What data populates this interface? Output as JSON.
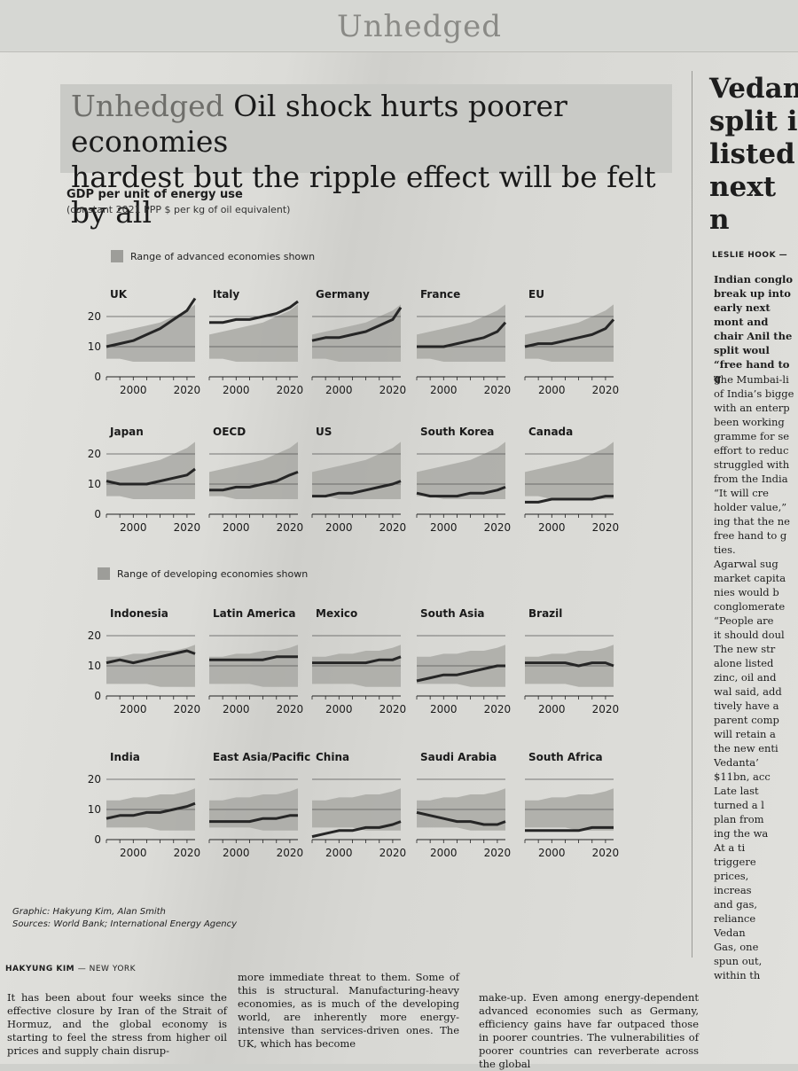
{
  "headline": {
    "kicker": "Unhedged",
    "line1_rest": "Oil shock hurts poorer economies",
    "line2": "hardest but the ripple effect will be felt by all"
  },
  "chart_data": {
    "type": "line",
    "title": "GDP per unit of energy use",
    "subtitle": "(constant 2021 PPP $ per kg of oil equivalent)",
    "legend_advanced": "Range of advanced economies shown",
    "legend_developing": "Range of developing economies shown",
    "x_ticks": [
      "2000",
      "2020"
    ],
    "y_ticks": [
      "0",
      "10",
      "20"
    ],
    "ylim": [
      0,
      25
    ],
    "xlim": [
      1990,
      2023
    ],
    "x": [
      1990,
      1995,
      2000,
      2005,
      2010,
      2015,
      2020,
      2023
    ],
    "band_advanced": {
      "low": [
        6,
        6,
        5,
        5,
        5,
        5,
        5,
        5
      ],
      "high": [
        14,
        15,
        16,
        17,
        18,
        20,
        22,
        24
      ]
    },
    "band_developing": {
      "low": [
        4,
        4,
        4,
        4,
        3,
        3,
        3,
        3
      ],
      "high": [
        13,
        13,
        14,
        14,
        15,
        15,
        16,
        17
      ]
    },
    "series": [
      {
        "name": "UK",
        "group": "advanced",
        "values": [
          10,
          11,
          12,
          14,
          16,
          19,
          22,
          26
        ]
      },
      {
        "name": "Italy",
        "group": "advanced",
        "values": [
          18,
          18,
          19,
          19,
          20,
          21,
          23,
          25
        ]
      },
      {
        "name": "Germany",
        "group": "advanced",
        "values": [
          12,
          13,
          13,
          14,
          15,
          17,
          19,
          23
        ]
      },
      {
        "name": "France",
        "group": "advanced",
        "values": [
          10,
          10,
          10,
          11,
          12,
          13,
          15,
          18
        ]
      },
      {
        "name": "EU",
        "group": "advanced",
        "values": [
          10,
          11,
          11,
          12,
          13,
          14,
          16,
          19
        ]
      },
      {
        "name": "Japan",
        "group": "advanced",
        "values": [
          11,
          10,
          10,
          10,
          11,
          12,
          13,
          15
        ]
      },
      {
        "name": "OECD",
        "group": "advanced",
        "values": [
          8,
          8,
          9,
          9,
          10,
          11,
          13,
          14
        ]
      },
      {
        "name": "US",
        "group": "advanced",
        "values": [
          6,
          6,
          7,
          7,
          8,
          9,
          10,
          11
        ]
      },
      {
        "name": "South Korea",
        "group": "advanced",
        "values": [
          7,
          6,
          6,
          6,
          7,
          7,
          8,
          9
        ]
      },
      {
        "name": "Canada",
        "group": "advanced",
        "values": [
          4,
          4,
          5,
          5,
          5,
          5,
          6,
          6
        ]
      },
      {
        "name": "Indonesia",
        "group": "developing",
        "values": [
          11,
          12,
          11,
          12,
          13,
          14,
          15,
          14
        ]
      },
      {
        "name": "Latin America",
        "group": "developing",
        "values": [
          12,
          12,
          12,
          12,
          12,
          13,
          13,
          13
        ]
      },
      {
        "name": "Mexico",
        "group": "developing",
        "values": [
          11,
          11,
          11,
          11,
          11,
          12,
          12,
          13
        ]
      },
      {
        "name": "South Asia",
        "group": "developing",
        "values": [
          5,
          6,
          7,
          7,
          8,
          9,
          10,
          10
        ]
      },
      {
        "name": "Brazil",
        "group": "developing",
        "values": [
          11,
          11,
          11,
          11,
          10,
          11,
          11,
          10
        ]
      },
      {
        "name": "India",
        "group": "developing",
        "values": [
          7,
          8,
          8,
          9,
          9,
          10,
          11,
          12
        ]
      },
      {
        "name": "East Asia/Pacific",
        "group": "developing",
        "values": [
          6,
          6,
          6,
          6,
          7,
          7,
          8,
          8
        ]
      },
      {
        "name": "China",
        "group": "developing",
        "values": [
          1,
          2,
          3,
          3,
          4,
          4,
          5,
          6
        ]
      },
      {
        "name": "Saudi Arabia",
        "group": "developing",
        "values": [
          9,
          8,
          7,
          6,
          6,
          5,
          5,
          6
        ]
      },
      {
        "name": "South Africa",
        "group": "developing",
        "values": [
          3,
          3,
          3,
          3,
          3,
          4,
          4,
          4
        ]
      }
    ]
  },
  "credits": {
    "graphic": "Graphic: Hakyung Kim, Alan Smith",
    "sources": "Sources: World Bank; International Energy Agency"
  },
  "article": {
    "byline_name": "HAKYUNG KIM",
    "byline_place": "— NEW YORK",
    "col1": "It has been about four weeks since the effective closure by Iran of the Strait of Hormuz, and the global economy is starting to feel the stress from higher oil prices and supply chain disrup-",
    "col2": "more immediate threat to them. Some of this is structural. Manufacturing-heavy economies, as is much of the developing world, are inherently more energy-intensive than services-driven ones. The UK, which has become",
    "col3": "make-up. Even among energy-dependent advanced economies such as Germany, efficiency gains have far outpaced those in poorer countries. The vulnerabilities of poorer countries can reverberate across the global"
  },
  "sidebar": {
    "headline": [
      "Vedan",
      "split i",
      "listed",
      "next n"
    ],
    "byline": "LESLIE HOOK —",
    "lede": "Indian conglo break up into early next mont and chair Anil the split woul “free hand to g",
    "body_lines": [
      "The Mumbai-li",
      "of India’s bigge",
      "with an enterp",
      "been working",
      "gramme for se",
      "effort to reduc",
      "struggled with",
      "from the India",
      "“It will cre",
      "holder value,”",
      "ing that the ne",
      "free hand to g",
      "ties.",
      "Agarwal sug",
      "market capita",
      "nies would b",
      "conglomerate",
      "“People are",
      "it should doul",
      "The new str",
      "alone listed",
      "zinc, oil and",
      "wal said, add",
      "tively have a",
      "parent comp",
      "will retain a",
      "the new enti",
      "Vedanta’",
      "$11bn, acc",
      "Late last",
      "turned a l",
      "plan from",
      "ing the wa",
      "At a ti",
      "triggere",
      "prices,",
      "increas",
      "and gas,",
      "reliance",
      "Vedan",
      "Gas, one",
      "spun out,",
      "within th"
    ]
  }
}
